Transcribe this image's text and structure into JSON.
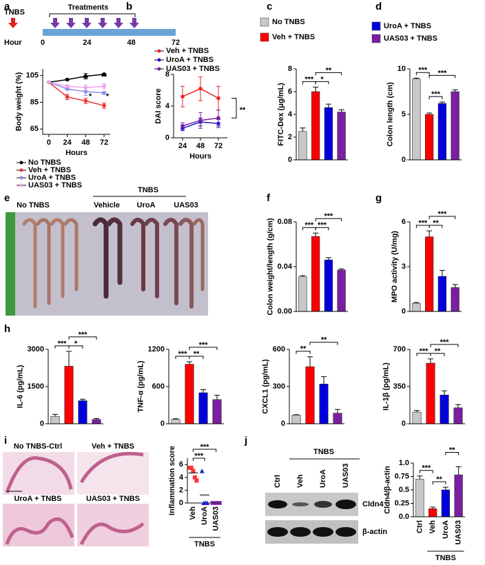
{
  "panel_labels": [
    "a",
    "b",
    "c",
    "d",
    "e",
    "f",
    "g",
    "h",
    "i",
    "j"
  ],
  "timeline": {
    "start_label": "TNBS",
    "treatments_label": "Treatments",
    "axis_label": "Hour",
    "ticks": [
      0,
      24,
      48,
      72
    ]
  },
  "colon_photo": {
    "labels": [
      "No TNBS",
      "Vehicle",
      "UroA",
      "UAS03"
    ],
    "group_label": "TNBS"
  },
  "histology": {
    "labels": [
      "No TNBS-Ctrl",
      "Veh + TNBS",
      "UroA + TNBS",
      "UAS03 + TNBS"
    ]
  },
  "blot": {
    "lanes": [
      "Ctrl",
      "Veh",
      "UroA",
      "UAS03"
    ],
    "group_label": "TNBS",
    "bands": [
      "Cldn4",
      "β-actin"
    ]
  },
  "chart_data": [
    {
      "type": "line",
      "ylabel": "Body weight (%)",
      "xlabel": "Hours",
      "x": [
        0,
        24,
        48,
        72
      ],
      "xlim": [
        -8,
        80
      ],
      "xticks": [
        0,
        24,
        48,
        72
      ],
      "ylim": [
        61,
        110
      ],
      "yticks": [
        65,
        85,
        105
      ],
      "series": [
        {
          "name": "No TNBS",
          "color": "#000000",
          "values": [
            100,
            102,
            104.5,
            106
          ],
          "errors": [
            0,
            0.5,
            2,
            0.5
          ]
        },
        {
          "name": "Veh + TNBS",
          "color": "#ee3333",
          "values": [
            100,
            89,
            86,
            82.5
          ],
          "errors": [
            0,
            2,
            2,
            2
          ]
        },
        {
          "name": "UroA + TNBS",
          "color": "#8c8cf0",
          "values": [
            100,
            95,
            93,
            92
          ],
          "errors": [
            0,
            1,
            3,
            1
          ]
        },
        {
          "name": "UAS03 + TNBS",
          "color": "#f0a0f0",
          "values": [
            100,
            97,
            96,
            97
          ],
          "errors": [
            0,
            1,
            2,
            2
          ]
        }
      ],
      "annotations": [
        "**",
        "**",
        "*",
        "*"
      ]
    },
    {
      "type": "line",
      "ylabel": "DAI score",
      "xlabel": "Hours",
      "x": [
        24,
        48,
        72
      ],
      "xlim": [
        12,
        84
      ],
      "xticks": [
        24,
        48,
        72
      ],
      "ylim": [
        0,
        8
      ],
      "yticks": [
        0,
        4,
        8
      ],
      "series": [
        {
          "name": "Veh + TNBS",
          "color": "#ee2222",
          "values": [
            5.2,
            6.2,
            5.0
          ],
          "errors": [
            1.3,
            1.5,
            1.5
          ]
        },
        {
          "name": "UroA + TNBS",
          "color": "#1a1acc",
          "values": [
            1.2,
            2.0,
            1.8
          ],
          "errors": [
            0.3,
            0.5,
            0.5
          ]
        },
        {
          "name": "UAS03 + TNBS",
          "color": "#7a1fa2",
          "values": [
            1.5,
            2.2,
            2.5
          ],
          "errors": [
            0.4,
            1.0,
            1.0
          ]
        }
      ],
      "annotations": [
        "**"
      ]
    },
    {
      "type": "bar",
      "ylabel": "FITC-Dex (μg/mL)",
      "values": [
        2.5,
        6.0,
        4.6,
        4.2
      ],
      "errors": [
        0.3,
        0.4,
        0.3,
        0.2
      ],
      "colors": [
        "#c8c8c8",
        "#ff0000",
        "#0000dd",
        "#7a1fa2"
      ],
      "ylim": [
        0,
        8
      ],
      "yticks": [
        0,
        2,
        4,
        6,
        8
      ],
      "legend": [
        {
          "name": "No TNBS",
          "color": "#c8c8c8"
        },
        {
          "name": "Veh + TNBS",
          "color": "#ff0000"
        }
      ],
      "significance": [
        "***",
        "*",
        "**"
      ]
    },
    {
      "type": "bar",
      "ylabel": "Colon length (cm)",
      "values": [
        8.9,
        5.0,
        6.2,
        7.5
      ],
      "errors": [
        0.1,
        0.15,
        0.15,
        0.2
      ],
      "colors": [
        "#c8c8c8",
        "#ff0000",
        "#0000dd",
        "#7a1fa2"
      ],
      "ylim": [
        0,
        10
      ],
      "yticks": [
        0,
        5,
        10
      ],
      "legend": [
        {
          "name": "UroA + TNBS",
          "color": "#0000dd"
        },
        {
          "name": "UAS03 + TNBS",
          "color": "#7a1fa2"
        }
      ],
      "significance": [
        "***",
        "***",
        "***"
      ]
    },
    {
      "type": "bar",
      "ylabel": "Colon weight/length (g/cm)",
      "values": [
        0.031,
        0.067,
        0.046,
        0.037
      ],
      "errors": [
        0.001,
        0.003,
        0.002,
        0.001
      ],
      "colors": [
        "#c8c8c8",
        "#ff0000",
        "#0000dd",
        "#7a1fa2"
      ],
      "ylim": [
        0,
        0.08
      ],
      "yticks": [
        {
          "value": 0,
          "label": "0.00"
        },
        0.04,
        0.08
      ],
      "significance": [
        "***",
        "***",
        "***"
      ]
    },
    {
      "type": "bar",
      "ylabel": "MPO activity (U/mg)",
      "values": [
        0.55,
        5.0,
        2.35,
        1.6
      ],
      "errors": [
        0.05,
        0.4,
        0.4,
        0.2
      ],
      "colors": [
        "#c8c8c8",
        "#ff0000",
        "#0000dd",
        "#7a1fa2"
      ],
      "ylim": [
        0,
        6
      ],
      "yticks": [
        0,
        3,
        6
      ],
      "significance": [
        "***",
        "**",
        "***"
      ]
    },
    {
      "type": "bar",
      "ylabel": "IL-6 (pg/mL)",
      "values": [
        300,
        2320,
        930,
        170
      ],
      "errors": [
        80,
        600,
        60,
        40
      ],
      "colors": [
        "#c8c8c8",
        "#ff0000",
        "#0000dd",
        "#7a1fa2"
      ],
      "ylim": [
        0,
        3000
      ],
      "yticks": [
        0,
        1500,
        3000
      ],
      "significance": [
        "***",
        "*",
        "***"
      ]
    },
    {
      "type": "bar",
      "ylabel": "TNF-α (pg/mL)",
      "values": [
        70,
        960,
        500,
        390
      ],
      "errors": [
        10,
        40,
        50,
        70
      ],
      "colors": [
        "#c8c8c8",
        "#ff0000",
        "#0000dd",
        "#7a1fa2"
      ],
      "ylim": [
        0,
        1200
      ],
      "yticks": [
        0,
        600,
        1200
      ],
      "significance": [
        "***",
        "**",
        "***"
      ]
    },
    {
      "type": "bar",
      "ylabel": "CXCL1 (pg/mL)",
      "values": [
        70,
        460,
        320,
        85
      ],
      "errors": [
        3,
        80,
        60,
        30
      ],
      "colors": [
        "#c8c8c8",
        "#ff0000",
        "#0000dd",
        "#7a1fa2"
      ],
      "ylim": [
        0,
        600
      ],
      "yticks": [
        0,
        300,
        600
      ],
      "significance": [
        "**",
        "**"
      ]
    },
    {
      "type": "bar",
      "ylabel": "IL-1β (pg/mL)",
      "values": [
        110,
        570,
        270,
        150
      ],
      "errors": [
        15,
        40,
        40,
        30
      ],
      "colors": [
        "#c8c8c8",
        "#ff0000",
        "#0000dd",
        "#7a1fa2"
      ],
      "ylim": [
        0,
        700
      ],
      "yticks": [
        0,
        350,
        700
      ],
      "significance": [
        "***",
        "**",
        "***"
      ]
    },
    {
      "type": "strip",
      "ylabel": "Inflammation score",
      "categories": [
        "Veh",
        "UroA",
        "UAS03"
      ],
      "group_label": "TNBS",
      "colors": [
        "#ff3333",
        "#2222cc",
        "#9933cc"
      ],
      "points": [
        [
          5.5,
          5.5,
          5,
          4,
          3.5
        ],
        [
          5,
          0,
          0,
          0
        ],
        [
          0,
          0,
          0,
          0,
          0
        ]
      ],
      "means": [
        4.7,
        1.25,
        0
      ],
      "ylim": [
        0,
        7
      ],
      "yticks": [
        0,
        2,
        4,
        6
      ],
      "significance": [
        "***",
        "***"
      ]
    },
    {
      "type": "bar",
      "ylabel": "Cldn4/β-actin",
      "categories": [
        "Ctrl",
        "Veh",
        "UroA",
        "UAS03"
      ],
      "group_label": "TNBS",
      "values": [
        0.7,
        0.15,
        0.5,
        0.78
      ],
      "errors": [
        0.06,
        0.03,
        0.05,
        0.15
      ],
      "colors": [
        "#c8c8c8",
        "#ff0000",
        "#0000dd",
        "#7a1fa2"
      ],
      "ylim": [
        0,
        1
      ],
      "yticks": [
        {
          "value": 0,
          "label": "0.0"
        },
        0.25,
        {
          "value": 0.5,
          "label": "0.5"
        },
        0.75,
        {
          "value": 1,
          "label": "1.0"
        }
      ],
      "significance": [
        "***",
        "**",
        "**"
      ]
    }
  ]
}
